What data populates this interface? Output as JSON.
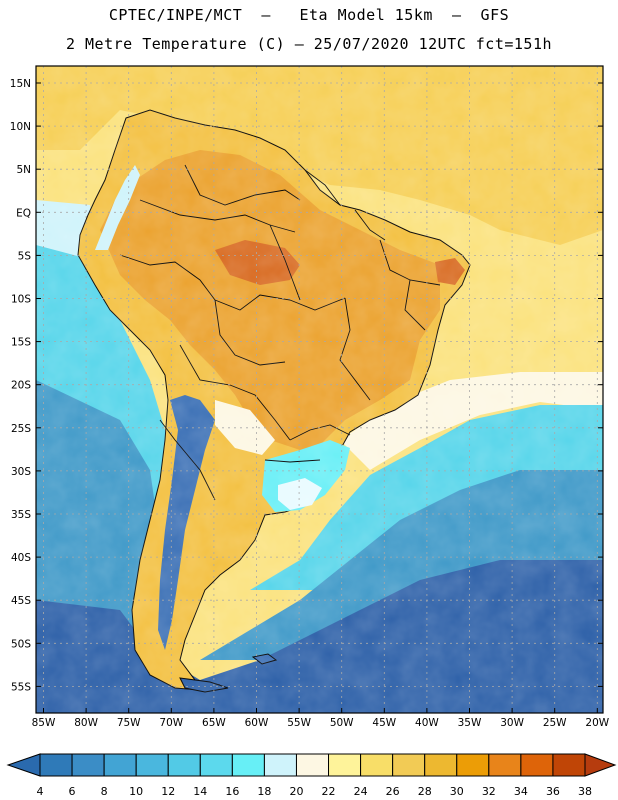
{
  "header": {
    "title_line1": "CPTEC/INPE/MCT  –   Eta Model 15km  –  GFS",
    "title_line2": "2 Metre Temperature (C) – 25/07/2020 12UTC fct=151h"
  },
  "map": {
    "lat_labels": [
      "15N",
      "10N",
      "5N",
      "EQ",
      "5S",
      "10S",
      "15S",
      "20S",
      "25S",
      "30S",
      "35S",
      "40S",
      "45S",
      "50S",
      "55S"
    ],
    "lon_labels": [
      "85W",
      "80W",
      "75W",
      "70W",
      "65W",
      "60W",
      "55W",
      "50W",
      "45W",
      "40W",
      "35W",
      "30W",
      "25W",
      "20W"
    ],
    "colors": {
      "ocean_warm": "#fbe27d",
      "land_hot": "#eba22e",
      "land_warm": "#f3c040",
      "hottest": "#d86a20",
      "ocean_mid": "#56d5ea",
      "ocean_cool": "#3f99c8",
      "ocean_cold": "#2d60a8",
      "andes_cold": "#3a6fb5",
      "boundary": "#000000",
      "grid": "#a9a9a9"
    }
  },
  "colorbar": {
    "tick_labels": [
      "4",
      "6",
      "8",
      "10",
      "12",
      "14",
      "16",
      "18",
      "20",
      "22",
      "24",
      "26",
      "28",
      "30",
      "32",
      "34",
      "36",
      "38"
    ],
    "colors": [
      "#2a6aae",
      "#2f7ab8",
      "#3b8dc6",
      "#42a4d4",
      "#4ab7de",
      "#52cae6",
      "#5cd9ed",
      "#67eff6",
      "#cff3fb",
      "#fdf7e3",
      "#fef39a",
      "#f8de68",
      "#f2cb55",
      "#edb830",
      "#ec9d06",
      "#e8841a",
      "#de6409",
      "#c04506",
      "#b63c0e"
    ]
  }
}
